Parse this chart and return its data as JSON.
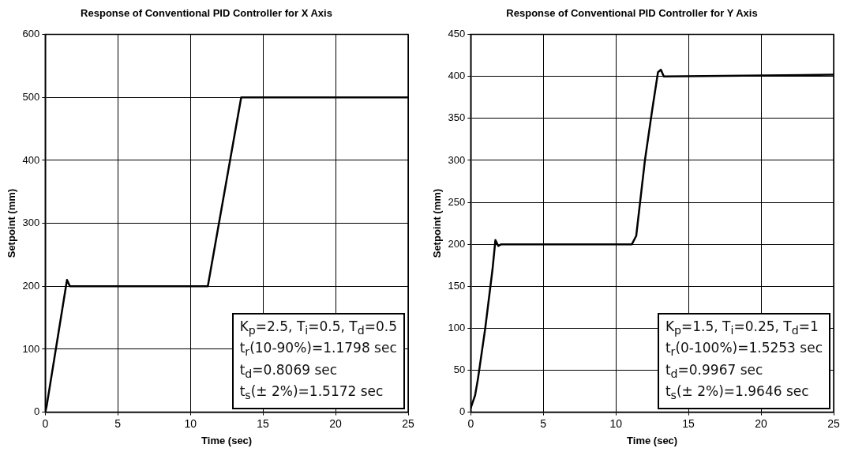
{
  "chart_data": [
    {
      "type": "line",
      "title": "Response of Conventional PID Controller for X Axis",
      "xlabel": "Time (sec)",
      "ylabel": "Setpoint (mm)",
      "x": [
        0,
        0.1,
        1.5,
        1.7,
        5,
        11.2,
        13.5,
        25
      ],
      "series": [
        {
          "color": "#000000",
          "values": [
            0,
            10,
            210,
            200,
            200,
            200,
            500,
            500
          ]
        }
      ],
      "xlim": [
        0,
        25
      ],
      "xticks": [
        0,
        5,
        10,
        15,
        20,
        25
      ],
      "ylim": [
        0,
        600
      ],
      "yticks": [
        0,
        100,
        200,
        300,
        400,
        500,
        600
      ],
      "grid": true,
      "legend": false,
      "marker": "none",
      "line_style": "solid",
      "annotations": [
        "K$_{p}$=2.5, T$_{i}$=0.5, T$_{d}$=0.5",
        "t$_{r}$(10-90%)=1.1798 sec",
        "t$_{d}$=0.8069 sec",
        "t$_{s}$(± 2%)=1.5172 sec"
      ]
    },
    {
      "type": "line",
      "title": "Response of Conventional PID Controller for Y Axis",
      "xlabel": "Time (sec)",
      "ylabel": "Setpoint (mm)",
      "x": [
        0,
        0.3,
        0.5,
        1,
        1.5,
        1.7,
        1.9,
        2.1,
        11.1,
        11.4,
        11.6,
        12,
        12.5,
        12.9,
        13.1,
        13.3,
        25
      ],
      "series": [
        {
          "color": "#000000",
          "values": [
            5,
            20,
            40,
            100,
            170,
            205,
            198,
            200,
            200,
            210,
            240,
            300,
            360,
            405,
            408,
            400,
            402
          ]
        }
      ],
      "xlim": [
        0,
        25
      ],
      "xticks": [
        0,
        5,
        10,
        15,
        20,
        25
      ],
      "ylim": [
        0,
        450
      ],
      "yticks": [
        0,
        50,
        100,
        150,
        200,
        250,
        300,
        350,
        400,
        450
      ],
      "grid": true,
      "legend": false,
      "marker": "none",
      "line_style": "solid",
      "annotations": [
        "K$_{p}$=1.5, T$_{i}$=0.25, T$_{d}$=1",
        "t$_{r}$(0-100%)=1.5253 sec",
        "t$_{d}$=0.9967 sec",
        "t$_{s}$(± 2%)=1.9646 sec"
      ]
    }
  ]
}
